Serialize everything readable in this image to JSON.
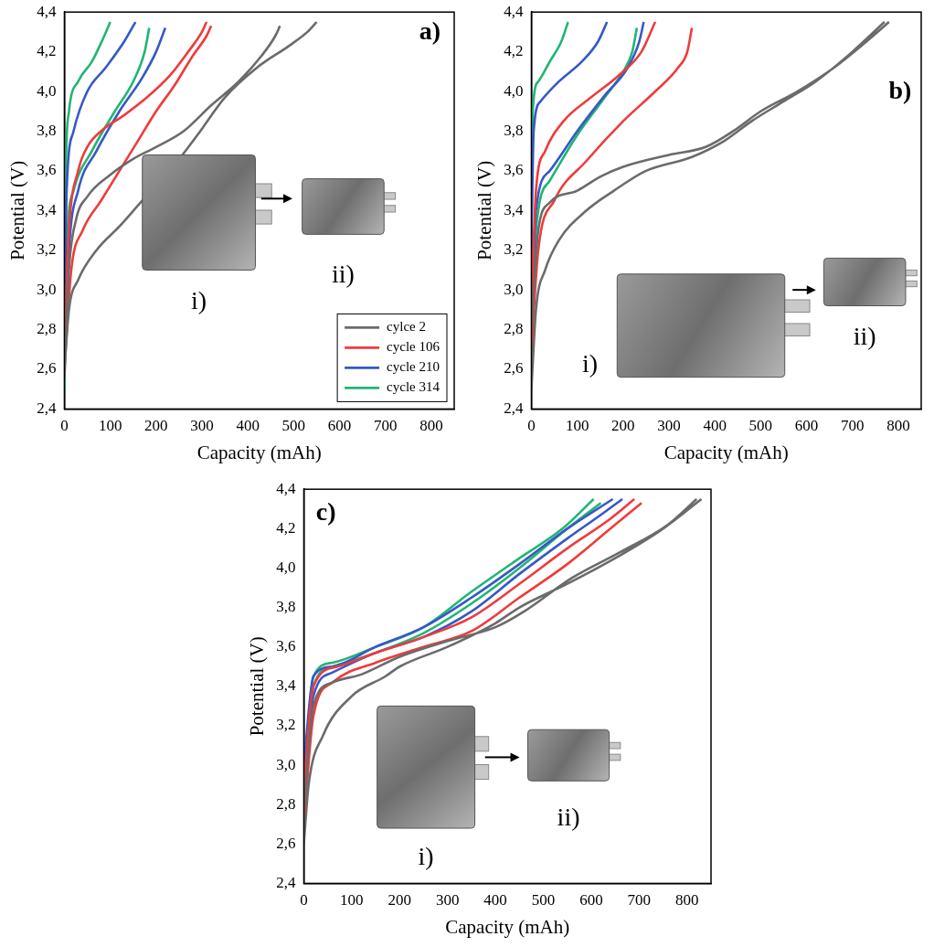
{
  "chart_data": [
    {
      "type": "line",
      "title": "a)",
      "x_label": "Capacity (mAh)",
      "y_label": "Potential (V)",
      "xlim": [
        0,
        850
      ],
      "xticks": [
        0,
        100,
        200,
        300,
        400,
        500,
        600,
        700,
        800
      ],
      "ylim": [
        2.4,
        4.4
      ],
      "yticks": [
        {
          "value": 2.4,
          "label": "2,4"
        },
        {
          "value": 2.6,
          "label": "2,6"
        },
        {
          "value": 2.8,
          "label": "2,8"
        },
        {
          "value": 3.0,
          "label": "3,0"
        },
        {
          "value": 3.2,
          "label": "3,2"
        },
        {
          "value": 3.4,
          "label": "3,4"
        },
        {
          "value": 3.6,
          "label": "3,6"
        },
        {
          "value": 3.8,
          "label": "3,8"
        },
        {
          "value": 4.0,
          "label": "4,0"
        },
        {
          "value": 4.2,
          "label": "4,2"
        },
        {
          "value": 4.4,
          "label": "4,4"
        }
      ],
      "grid": false,
      "legend": "lower right",
      "inset_labels": [
        "i)",
        "ii)"
      ],
      "series": [
        {
          "name": "cylce 2",
          "color": "#6b6b6b",
          "x": [
            0,
            10,
            30,
            70,
            120,
            170,
            230,
            290,
            350,
            420,
            490,
            530,
            550,
            null,
            0,
            10,
            25,
            50,
            100,
            150,
            200,
            260,
            320,
            380,
            430,
            460,
            470
          ],
          "values": [
            2.6,
            2.9,
            3.05,
            3.2,
            3.32,
            3.45,
            3.6,
            3.78,
            3.97,
            4.12,
            4.23,
            4.3,
            4.35,
            null,
            2.55,
            3.1,
            3.35,
            3.47,
            3.58,
            3.66,
            3.72,
            3.8,
            3.93,
            4.05,
            4.18,
            4.28,
            4.33
          ]
        },
        {
          "name": "cycle 106",
          "color": "#ef3b3b",
          "x": [
            0,
            10,
            30,
            50,
            80,
            130,
            180,
            230,
            270,
            300,
            310,
            null,
            0,
            15,
            40,
            80,
            120,
            160,
            200,
            240,
            280,
            310,
            320
          ],
          "values": [
            2.7,
            3.3,
            3.6,
            3.72,
            3.8,
            3.88,
            3.97,
            4.08,
            4.2,
            4.3,
            4.35,
            null,
            2.6,
            3.1,
            3.3,
            3.45,
            3.6,
            3.75,
            3.9,
            4.03,
            4.18,
            4.28,
            4.33
          ]
        },
        {
          "name": "cycle 210",
          "color": "#3658c8",
          "x": [
            0,
            5,
            20,
            50,
            90,
            130,
            155,
            null,
            0,
            10,
            30,
            70,
            120,
            170,
            200,
            220
          ],
          "values": [
            2.8,
            3.5,
            3.8,
            4.0,
            4.12,
            4.25,
            4.35,
            null,
            2.6,
            3.2,
            3.5,
            3.7,
            3.9,
            4.07,
            4.2,
            4.32
          ]
        },
        {
          "name": "cycle 314",
          "color": "#22b573",
          "x": [
            0,
            3,
            10,
            30,
            60,
            85,
            100,
            null,
            0,
            5,
            20,
            60,
            110,
            150,
            175,
            185
          ],
          "values": [
            2.9,
            3.6,
            3.9,
            4.05,
            4.15,
            4.27,
            4.35,
            null,
            2.5,
            3.2,
            3.5,
            3.7,
            3.9,
            4.05,
            4.2,
            4.32
          ]
        }
      ]
    },
    {
      "type": "line",
      "title": "b)",
      "x_label": "Capacity (mAh)",
      "y_label": "Potential (V)",
      "xlim": [
        0,
        850
      ],
      "xticks": [
        0,
        100,
        200,
        300,
        400,
        500,
        600,
        700,
        800
      ],
      "ylim": [
        2.4,
        4.4
      ],
      "yticks": [
        {
          "value": 2.4,
          "label": "2,4"
        },
        {
          "value": 2.6,
          "label": "2,6"
        },
        {
          "value": 2.8,
          "label": "2,8"
        },
        {
          "value": 3.0,
          "label": "3,0"
        },
        {
          "value": 3.2,
          "label": "3,2"
        },
        {
          "value": 3.4,
          "label": "3,4"
        },
        {
          "value": 3.6,
          "label": "3,6"
        },
        {
          "value": 3.8,
          "label": "3,8"
        },
        {
          "value": 4.0,
          "label": "4,0"
        },
        {
          "value": 4.2,
          "label": "4,2"
        },
        {
          "value": 4.4,
          "label": "4,4"
        }
      ],
      "grid": false,
      "inset_labels": [
        "i)",
        "ii)"
      ],
      "series": [
        {
          "color": "#6b6b6b",
          "x": [
            0,
            10,
            30,
            60,
            120,
            180,
            250,
            350,
            420,
            480,
            550,
            620,
            700,
            770,
            null,
            0,
            15,
            40,
            100,
            150,
            200,
            300,
            380,
            440,
            500,
            580,
            660,
            730,
            780
          ],
          "values": [
            2.5,
            2.9,
            3.1,
            3.25,
            3.4,
            3.5,
            3.6,
            3.67,
            3.75,
            3.85,
            3.95,
            4.05,
            4.2,
            4.35,
            null,
            2.8,
            3.3,
            3.44,
            3.5,
            3.57,
            3.62,
            3.68,
            3.72,
            3.8,
            3.9,
            4.0,
            4.12,
            4.25,
            4.35
          ]
        },
        {
          "color": "#ef3b3b",
          "x": [
            0,
            10,
            30,
            70,
            130,
            190,
            240,
            270,
            null,
            0,
            15,
            50,
            120,
            200,
            270,
            320,
            340,
            350
          ],
          "values": [
            2.9,
            3.5,
            3.7,
            3.85,
            3.97,
            4.08,
            4.2,
            4.35,
            null,
            2.7,
            3.2,
            3.45,
            3.65,
            3.85,
            4.0,
            4.12,
            4.2,
            4.32
          ]
        },
        {
          "color": "#3658c8",
          "x": [
            0,
            5,
            20,
            60,
            110,
            145,
            165,
            null,
            0,
            10,
            40,
            100,
            160,
            210,
            235,
            245
          ],
          "values": [
            3.2,
            3.8,
            3.95,
            4.05,
            4.15,
            4.25,
            4.35,
            null,
            2.8,
            3.4,
            3.6,
            3.8,
            3.98,
            4.12,
            4.25,
            4.35
          ]
        },
        {
          "color": "#22b573",
          "x": [
            0,
            3,
            15,
            40,
            65,
            80,
            null,
            0,
            10,
            40,
            100,
            160,
            200,
            220,
            230
          ],
          "values": [
            3.3,
            3.9,
            4.05,
            4.15,
            4.25,
            4.35,
            null,
            2.6,
            3.3,
            3.55,
            3.78,
            3.97,
            4.1,
            4.2,
            4.32
          ]
        }
      ]
    },
    {
      "type": "line",
      "title": "c)",
      "x_label": "Capacity (mAh)",
      "y_label": "Potential (V)",
      "xlim": [
        0,
        850
      ],
      "xticks": [
        0,
        100,
        200,
        300,
        400,
        500,
        600,
        700,
        800
      ],
      "ylim": [
        2.4,
        4.4
      ],
      "yticks": [
        {
          "value": 2.4,
          "label": "2,4"
        },
        {
          "value": 2.6,
          "label": "2,6"
        },
        {
          "value": 2.8,
          "label": "2,8"
        },
        {
          "value": 3.0,
          "label": "3,0"
        },
        {
          "value": 3.2,
          "label": "3,2"
        },
        {
          "value": 3.4,
          "label": "3,4"
        },
        {
          "value": 3.6,
          "label": "3,6"
        },
        {
          "value": 3.8,
          "label": "3,8"
        },
        {
          "value": 4.0,
          "label": "4,0"
        },
        {
          "value": 4.2,
          "label": "4,2"
        },
        {
          "value": 4.4,
          "label": "4,4"
        }
      ],
      "grid": false,
      "inset_labels": [
        "i)",
        "ii)"
      ],
      "series": [
        {
          "color": "#6b6b6b",
          "x": [
            0,
            10,
            40,
            100,
            170,
            200,
            300,
            400,
            450,
            550,
            650,
            750,
            830,
            null,
            0,
            20,
            60,
            120,
            200,
            300,
            400,
            460,
            560,
            660,
            760,
            820
          ],
          "values": [
            2.6,
            2.9,
            3.15,
            3.35,
            3.45,
            3.5,
            3.6,
            3.72,
            3.8,
            3.92,
            4.05,
            4.2,
            4.35,
            null,
            2.8,
            3.3,
            3.42,
            3.46,
            3.55,
            3.63,
            3.7,
            3.78,
            3.95,
            4.08,
            4.22,
            4.35
          ]
        },
        {
          "color": "#ef3b3b",
          "x": [
            0,
            20,
            60,
            150,
            250,
            350,
            450,
            550,
            640,
            705,
            null,
            0,
            20,
            70,
            150,
            250,
            350,
            450,
            550,
            640,
            690
          ],
          "values": [
            2.7,
            3.25,
            3.42,
            3.52,
            3.6,
            3.68,
            3.85,
            4.02,
            4.2,
            4.33,
            null,
            2.9,
            3.4,
            3.5,
            3.57,
            3.65,
            3.75,
            3.92,
            4.1,
            4.25,
            4.35
          ]
        },
        {
          "color": "#3658c8",
          "x": [
            0,
            20,
            60,
            150,
            250,
            350,
            450,
            550,
            620,
            665,
            null,
            0,
            20,
            60,
            150,
            250,
            350,
            450,
            550,
            645
          ],
          "values": [
            2.8,
            3.35,
            3.47,
            3.57,
            3.65,
            3.78,
            3.97,
            4.15,
            4.27,
            4.35,
            null,
            3.0,
            3.45,
            3.5,
            3.6,
            3.7,
            3.85,
            4.02,
            4.2,
            4.35
          ]
        },
        {
          "color": "#22b573",
          "x": [
            0,
            20,
            60,
            150,
            250,
            350,
            450,
            540,
            605,
            null,
            0,
            20,
            60,
            150,
            250,
            350,
            450,
            550,
            620
          ],
          "values": [
            2.9,
            3.45,
            3.52,
            3.6,
            3.7,
            3.88,
            4.05,
            4.2,
            4.35,
            null,
            2.8,
            3.4,
            3.5,
            3.57,
            3.67,
            3.82,
            4.0,
            4.2,
            4.33
          ]
        }
      ]
    }
  ]
}
